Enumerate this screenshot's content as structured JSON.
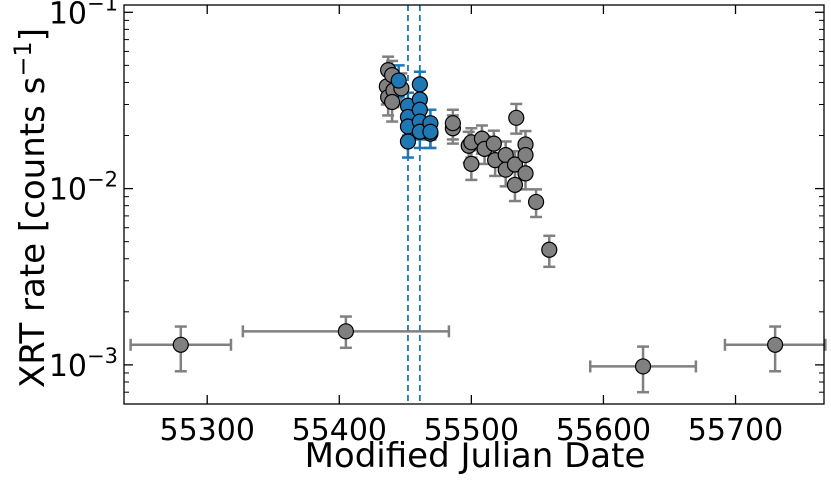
{
  "chart_data": {
    "type": "scatter",
    "xlabel": "Modified Julian Date",
    "ylabel_main": "XRT rate [counts s",
    "ylabel_sup": "−1",
    "ylabel_close": "]",
    "xlim": [
      55237,
      55767
    ],
    "ylim": [
      0.0006,
      0.11
    ],
    "yscale": "log",
    "x_ticks": [
      55300,
      55400,
      55500,
      55600,
      55700
    ],
    "x_tick_labels": [
      "55300",
      "55400",
      "55500",
      "55600",
      "55700"
    ],
    "y_ticks": [
      {
        "value": 0.001,
        "base": "10",
        "exp": "−3"
      },
      {
        "value": 0.01,
        "base": "10",
        "exp": "−2"
      },
      {
        "value": 0.1,
        "base": "10",
        "exp": "−1"
      }
    ],
    "vlines": [
      55452,
      55461
    ],
    "colors": {
      "gray": "#808080",
      "blue": "#1f77b4",
      "errorbar": "#808080"
    },
    "series": [
      {
        "color": "gray",
        "points": [
          {
            "x": 55280,
            "y": 0.0013,
            "xerr": 38,
            "ylo": 0.00092,
            "yhi": 0.00165
          },
          {
            "x": 55405,
            "y": 0.00155,
            "xerr": 78,
            "ylo": 0.00125,
            "yhi": 0.00188
          },
          {
            "x": 55630,
            "y": 0.00098,
            "xerr": 40,
            "ylo": 0.0007,
            "yhi": 0.00127
          },
          {
            "x": 55730,
            "y": 0.0013,
            "xerr": 38,
            "ylo": 0.00092,
            "yhi": 0.00165
          },
          {
            "x": 55437,
            "y": 0.047,
            "ylo": 0.038,
            "yhi": 0.056
          },
          {
            "x": 55436,
            "y": 0.038,
            "ylo": 0.03,
            "yhi": 0.046
          },
          {
            "x": 55437,
            "y": 0.033,
            "ylo": 0.026,
            "yhi": 0.04
          },
          {
            "x": 55440,
            "y": 0.044,
            "ylo": 0.036,
            "yhi": 0.053
          },
          {
            "x": 55441,
            "y": 0.036,
            "ylo": 0.029,
            "yhi": 0.044
          },
          {
            "x": 55440,
            "y": 0.031,
            "ylo": 0.024,
            "yhi": 0.038
          },
          {
            "x": 55447,
            "y": 0.037,
            "ylo": 0.03,
            "yhi": 0.045
          },
          {
            "x": 55469,
            "y": 0.0205,
            "ylo": 0.017,
            "yhi": 0.024
          },
          {
            "x": 55486,
            "y": 0.022,
            "ylo": 0.018,
            "yhi": 0.026
          },
          {
            "x": 55486,
            "y": 0.0235,
            "ylo": 0.019,
            "yhi": 0.028
          },
          {
            "x": 55498,
            "y": 0.0175,
            "ylo": 0.014,
            "yhi": 0.021
          },
          {
            "x": 55500,
            "y": 0.0183,
            "ylo": 0.015,
            "yhi": 0.022
          },
          {
            "x": 55500,
            "y": 0.0138,
            "ylo": 0.0112,
            "yhi": 0.0165
          },
          {
            "x": 55508,
            "y": 0.0192,
            "ylo": 0.0158,
            "yhi": 0.0228
          },
          {
            "x": 55510,
            "y": 0.0168,
            "ylo": 0.0138,
            "yhi": 0.0198
          },
          {
            "x": 55517,
            "y": 0.018,
            "ylo": 0.0148,
            "yhi": 0.0213
          },
          {
            "x": 55518,
            "y": 0.0145,
            "ylo": 0.0118,
            "yhi": 0.0173
          },
          {
            "x": 55526,
            "y": 0.0155,
            "ylo": 0.0127,
            "yhi": 0.0185
          },
          {
            "x": 55526,
            "y": 0.0128,
            "ylo": 0.0103,
            "yhi": 0.0154
          },
          {
            "x": 55534,
            "y": 0.0252,
            "ylo": 0.0205,
            "yhi": 0.0302
          },
          {
            "x": 55533,
            "y": 0.0137,
            "ylo": 0.0112,
            "yhi": 0.0163
          },
          {
            "x": 55533,
            "y": 0.0105,
            "ylo": 0.0085,
            "yhi": 0.0126
          },
          {
            "x": 55541,
            "y": 0.0178,
            "ylo": 0.0146,
            "yhi": 0.0212
          },
          {
            "x": 55541,
            "y": 0.0155,
            "ylo": 0.0127,
            "yhi": 0.0185
          },
          {
            "x": 55541,
            "y": 0.0122,
            "ylo": 0.0099,
            "yhi": 0.0146
          },
          {
            "x": 55549,
            "y": 0.0084,
            "ylo": 0.0069,
            "yhi": 0.0099
          },
          {
            "x": 55559,
            "y": 0.0045,
            "ylo": 0.0036,
            "yhi": 0.0054
          }
        ]
      },
      {
        "color": "blue",
        "points": [
          {
            "x": 55445,
            "y": 0.041,
            "ylo": 0.033,
            "yhi": 0.05
          },
          {
            "x": 55452,
            "y": 0.0295,
            "ylo": 0.024,
            "yhi": 0.035
          },
          {
            "x": 55452,
            "y": 0.0255,
            "ylo": 0.02,
            "yhi": 0.031
          },
          {
            "x": 55452,
            "y": 0.0225,
            "ylo": 0.018,
            "yhi": 0.027
          },
          {
            "x": 55452,
            "y": 0.0185,
            "ylo": 0.015,
            "yhi": 0.022
          },
          {
            "x": 55461,
            "y": 0.039,
            "ylo": 0.032,
            "yhi": 0.046
          },
          {
            "x": 55461,
            "y": 0.032,
            "ylo": 0.026,
            "yhi": 0.038
          },
          {
            "x": 55461,
            "y": 0.028,
            "ylo": 0.023,
            "yhi": 0.033
          },
          {
            "x": 55461,
            "y": 0.024,
            "ylo": 0.019,
            "yhi": 0.029
          },
          {
            "x": 55461,
            "y": 0.021,
            "ylo": 0.017,
            "yhi": 0.025
          },
          {
            "x": 55469,
            "y": 0.0235,
            "ylo": 0.019,
            "yhi": 0.028
          },
          {
            "x": 55469,
            "y": 0.021,
            "ylo": 0.017,
            "yhi": 0.025
          }
        ]
      }
    ]
  }
}
